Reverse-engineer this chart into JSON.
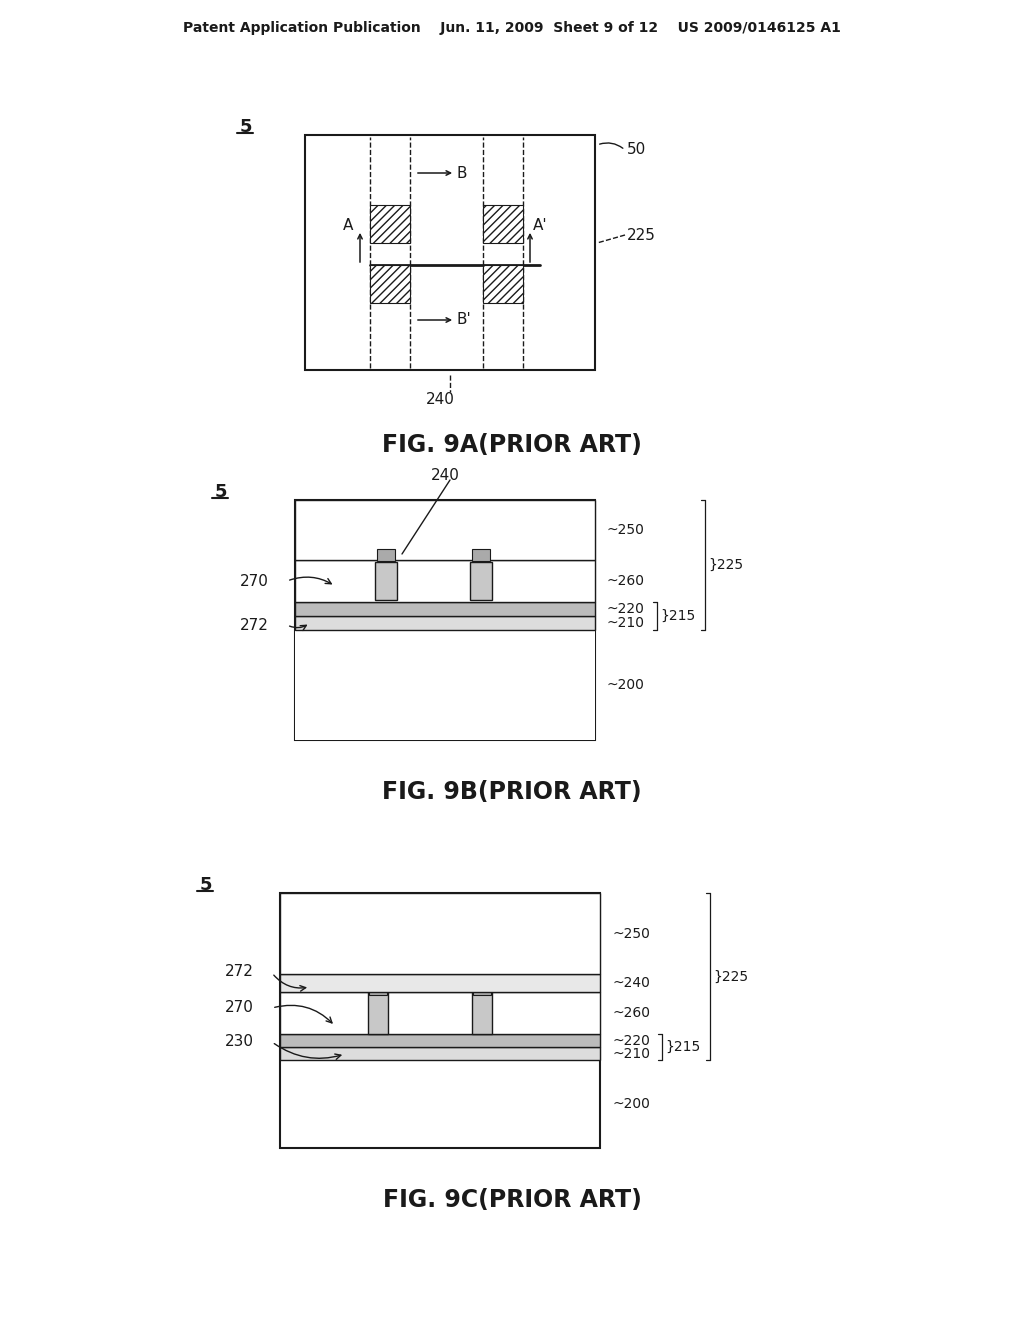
{
  "bg_color": "#ffffff",
  "line_color": "#1a1a1a",
  "header": "Patent Application Publication    Jun. 11, 2009  Sheet 9 of 12    US 2009/0146125 A1",
  "cap_9a": "FIG. 9A(PRIOR ART)",
  "cap_9b": "FIG. 9B(PRIOR ART)",
  "cap_9c": "FIG. 9C(PRIOR ART)"
}
